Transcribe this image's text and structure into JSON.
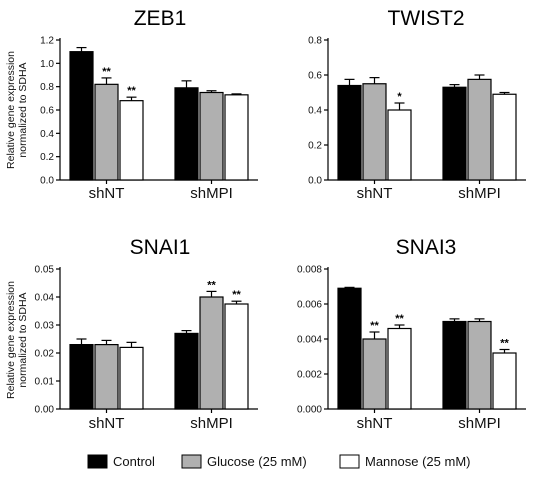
{
  "chart_data": [
    {
      "type": "bar",
      "title": "ZEB1",
      "ylabel": [
        "Relative gene expression",
        "normalized to SDHA"
      ],
      "categories": [
        "shNT",
        "shMPI"
      ],
      "ylim": [
        0,
        1.2
      ],
      "yticks": [
        "0.0",
        "0.2",
        "0.4",
        "0.6",
        "0.8",
        "1.0",
        "1.2"
      ],
      "yticks_values": [
        0,
        0.2,
        0.4,
        0.6,
        0.8,
        1.0,
        1.2
      ],
      "series": [
        {
          "name": "Control",
          "values": [
            1.1,
            0.79
          ],
          "errors": [
            0.035,
            0.06
          ],
          "sig": [
            "",
            ""
          ]
        },
        {
          "name": "Glucose (25 mM)",
          "values": [
            0.82,
            0.75
          ],
          "errors": [
            0.055,
            0.015
          ],
          "sig": [
            "**",
            ""
          ]
        },
        {
          "name": "Mannose (25 mM)",
          "values": [
            0.68,
            0.73
          ],
          "errors": [
            0.03,
            0.008
          ],
          "sig": [
            "**",
            ""
          ]
        }
      ]
    },
    {
      "type": "bar",
      "title": "TWIST2",
      "ylabel": [],
      "categories": [
        "shNT",
        "shMPI"
      ],
      "ylim": [
        0,
        0.8
      ],
      "yticks": [
        "0.0",
        "0.2",
        "0.4",
        "0.6",
        "0.8"
      ],
      "yticks_values": [
        0,
        0.2,
        0.4,
        0.6,
        0.8
      ],
      "series": [
        {
          "name": "Control",
          "values": [
            0.54,
            0.53
          ],
          "errors": [
            0.035,
            0.015
          ],
          "sig": [
            "",
            ""
          ]
        },
        {
          "name": "Glucose (25 mM)",
          "values": [
            0.55,
            0.575
          ],
          "errors": [
            0.035,
            0.025
          ],
          "sig": [
            "",
            ""
          ]
        },
        {
          "name": "Mannose (25 mM)",
          "values": [
            0.4,
            0.49
          ],
          "errors": [
            0.04,
            0.01
          ],
          "sig": [
            "*",
            ""
          ]
        }
      ]
    },
    {
      "type": "bar",
      "title": "SNAI1",
      "ylabel": [
        "Relative gene expression",
        "normalized to SDHA"
      ],
      "categories": [
        "shNT",
        "shMPI"
      ],
      "ylim": [
        0,
        0.05
      ],
      "yticks": [
        "0.00",
        "0.01",
        "0.02",
        "0.03",
        "0.04",
        "0.05"
      ],
      "yticks_values": [
        0,
        0.01,
        0.02,
        0.03,
        0.04,
        0.05
      ],
      "series": [
        {
          "name": "Control",
          "values": [
            0.023,
            0.027
          ],
          "errors": [
            0.002,
            0.001
          ],
          "sig": [
            "",
            ""
          ]
        },
        {
          "name": "Glucose (25 mM)",
          "values": [
            0.023,
            0.04
          ],
          "errors": [
            0.0015,
            0.002
          ],
          "sig": [
            "",
            "**"
          ]
        },
        {
          "name": "Mannose (25 mM)",
          "values": [
            0.022,
            0.0375
          ],
          "errors": [
            0.0018,
            0.001
          ],
          "sig": [
            "",
            "**"
          ]
        }
      ]
    },
    {
      "type": "bar",
      "title": "SNAI3",
      "ylabel": [],
      "categories": [
        "shNT",
        "shMPI"
      ],
      "ylim": [
        0,
        0.008
      ],
      "yticks": [
        "0.000",
        "0.002",
        "0.004",
        "0.006",
        "0.008"
      ],
      "yticks_values": [
        0,
        0.002,
        0.004,
        0.006,
        0.008
      ],
      "series": [
        {
          "name": "Control",
          "values": [
            0.0069,
            0.005
          ],
          "errors": [
            5e-05,
            0.00015
          ],
          "sig": [
            "",
            ""
          ]
        },
        {
          "name": "Glucose (25 mM)",
          "values": [
            0.004,
            0.005
          ],
          "errors": [
            0.0004,
            0.00015
          ],
          "sig": [
            "**",
            ""
          ]
        },
        {
          "name": "Mannose (25 mM)",
          "values": [
            0.0046,
            0.0032
          ],
          "errors": [
            0.0002,
            0.0002
          ],
          "sig": [
            "**",
            "**"
          ]
        }
      ]
    }
  ],
  "legend": {
    "items": [
      {
        "label": "Control",
        "color": "#000000"
      },
      {
        "label": "Glucose (25 mM)",
        "color": "#b0b0b0"
      },
      {
        "label": "Mannose (25 mM)",
        "color": "#ffffff"
      }
    ]
  }
}
